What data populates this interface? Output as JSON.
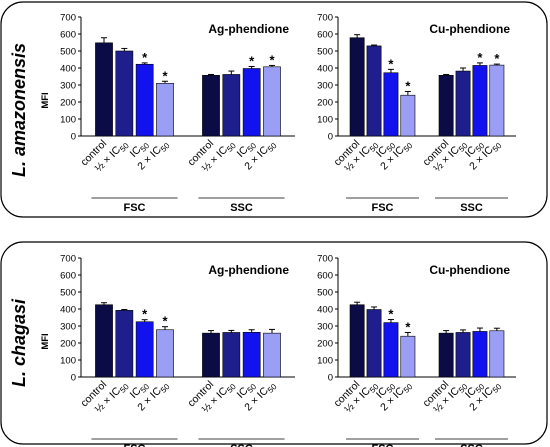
{
  "colors": {
    "control": "#0b0b45",
    "half_ic50": "#1e1e8c",
    "ic50": "#1212ee",
    "two_ic50": "#9a9ef4"
  },
  "rows": [
    {
      "species_label": "L. amazonensis"
    },
    {
      "species_label": "L. chagasi"
    }
  ],
  "chart_data": [
    {
      "type": "bar",
      "title": "Ag-phendione",
      "ylabel": "MFI",
      "ylim": [
        0,
        700
      ],
      "yticks": [
        0,
        100,
        200,
        300,
        400,
        500,
        600,
        700
      ],
      "groups": [
        "FSC",
        "SSC"
      ],
      "categories": [
        "control",
        "½ × IC50",
        "IC50",
        "2 × IC50"
      ],
      "series": [
        {
          "group": "FSC",
          "values": [
            548,
            500,
            422,
            310
          ],
          "errors": [
            30,
            15,
            8,
            12
          ],
          "significant": [
            false,
            false,
            true,
            true
          ]
        },
        {
          "group": "SSC",
          "values": [
            357,
            362,
            397,
            407
          ],
          "errors": [
            5,
            20,
            12,
            8
          ],
          "significant": [
            false,
            false,
            true,
            true
          ]
        }
      ]
    },
    {
      "type": "bar",
      "title": "Cu-phendione",
      "ylabel": "",
      "ylim": [
        0,
        700
      ],
      "yticks": [
        0,
        100,
        200,
        300,
        400,
        500,
        600,
        700
      ],
      "groups": [
        "FSC",
        "SSC"
      ],
      "categories": [
        "control",
        "½ × IC50",
        "IC50",
        "2 × IC50"
      ],
      "series": [
        {
          "group": "FSC",
          "values": [
            578,
            530,
            372,
            240
          ],
          "errors": [
            18,
            5,
            20,
            22
          ],
          "significant": [
            false,
            false,
            true,
            true
          ]
        },
        {
          "group": "SSC",
          "values": [
            357,
            382,
            415,
            417
          ],
          "errors": [
            5,
            18,
            15,
            6
          ],
          "significant": [
            false,
            false,
            true,
            true
          ]
        }
      ]
    },
    {
      "type": "bar",
      "title": "Ag-phendione",
      "ylabel": "MFI",
      "ylim": [
        0,
        700
      ],
      "yticks": [
        0,
        100,
        200,
        300,
        400,
        500,
        600,
        700
      ],
      "groups": [
        "FSC",
        "SSC"
      ],
      "categories": [
        "control",
        "½ × IC50",
        "IC50",
        "2 × IC50"
      ],
      "series": [
        {
          "group": "FSC",
          "values": [
            425,
            392,
            325,
            278
          ],
          "errors": [
            12,
            5,
            12,
            18
          ],
          "significant": [
            false,
            false,
            true,
            true
          ]
        },
        {
          "group": "SSC",
          "values": [
            258,
            262,
            263,
            258
          ],
          "errors": [
            15,
            12,
            15,
            22
          ],
          "significant": [
            false,
            false,
            false,
            false
          ]
        }
      ]
    },
    {
      "type": "bar",
      "title": "Cu-phendione",
      "ylabel": "",
      "ylim": [
        0,
        700
      ],
      "yticks": [
        0,
        100,
        200,
        300,
        400,
        500,
        600,
        700
      ],
      "groups": [
        "FSC",
        "SSC"
      ],
      "categories": [
        "control",
        "½ × IC50",
        "IC50",
        "2 × IC50"
      ],
      "series": [
        {
          "group": "FSC",
          "values": [
            425,
            397,
            320,
            240
          ],
          "errors": [
            15,
            15,
            18,
            22
          ],
          "significant": [
            false,
            false,
            true,
            true
          ]
        },
        {
          "group": "SSC",
          "values": [
            258,
            262,
            268,
            272
          ],
          "errors": [
            15,
            15,
            20,
            15
          ],
          "significant": [
            false,
            false,
            false,
            false
          ]
        }
      ]
    }
  ]
}
